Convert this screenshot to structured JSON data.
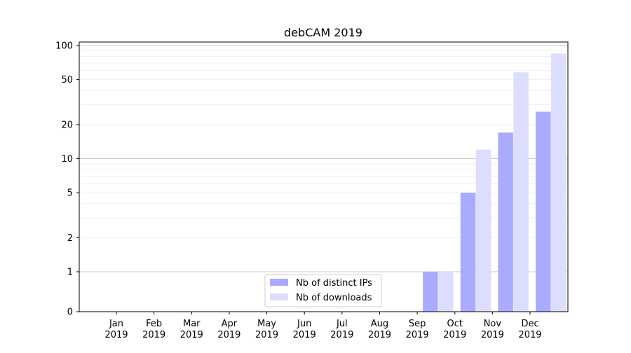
{
  "chart_data": {
    "type": "bar",
    "title": "debCAM 2019",
    "xlabel": "",
    "ylabel": "",
    "yscale": "symlog",
    "ylim": [
      0,
      100
    ],
    "yticks": [
      0,
      1,
      2,
      5,
      10,
      20,
      50,
      100
    ],
    "ytick_labels": [
      "0",
      "1",
      "2",
      "5",
      "10",
      "20",
      "50",
      "100"
    ],
    "categories": [
      "Jan\n2019",
      "Feb\n2019",
      "Mar\n2019",
      "Apr\n2019",
      "May\n2019",
      "Jun\n2019",
      "Jul\n2019",
      "Aug\n2019",
      "Sep\n2019",
      "Oct\n2019",
      "Nov\n2019",
      "Dec\n2019"
    ],
    "category_lines": [
      [
        "Jan",
        "2019"
      ],
      [
        "Feb",
        "2019"
      ],
      [
        "Mar",
        "2019"
      ],
      [
        "Apr",
        "2019"
      ],
      [
        "May",
        "2019"
      ],
      [
        "Jun",
        "2019"
      ],
      [
        "Jul",
        "2019"
      ],
      [
        "Aug",
        "2019"
      ],
      [
        "Sep",
        "2019"
      ],
      [
        "Oct",
        "2019"
      ],
      [
        "Nov",
        "2019"
      ],
      [
        "Dec",
        "2019"
      ]
    ],
    "series": [
      {
        "name": "Nb of distinct IPs",
        "color": "#aaaaff",
        "values": [
          0,
          0,
          0,
          0,
          0,
          0,
          0,
          0,
          1,
          5,
          17,
          26
        ]
      },
      {
        "name": "Nb of downloads",
        "color": "#ddddff",
        "values": [
          0,
          0,
          0,
          0,
          0,
          0,
          0,
          0,
          1,
          12,
          58,
          85
        ]
      }
    ],
    "grid": "y",
    "legend_position": "lower-center"
  }
}
